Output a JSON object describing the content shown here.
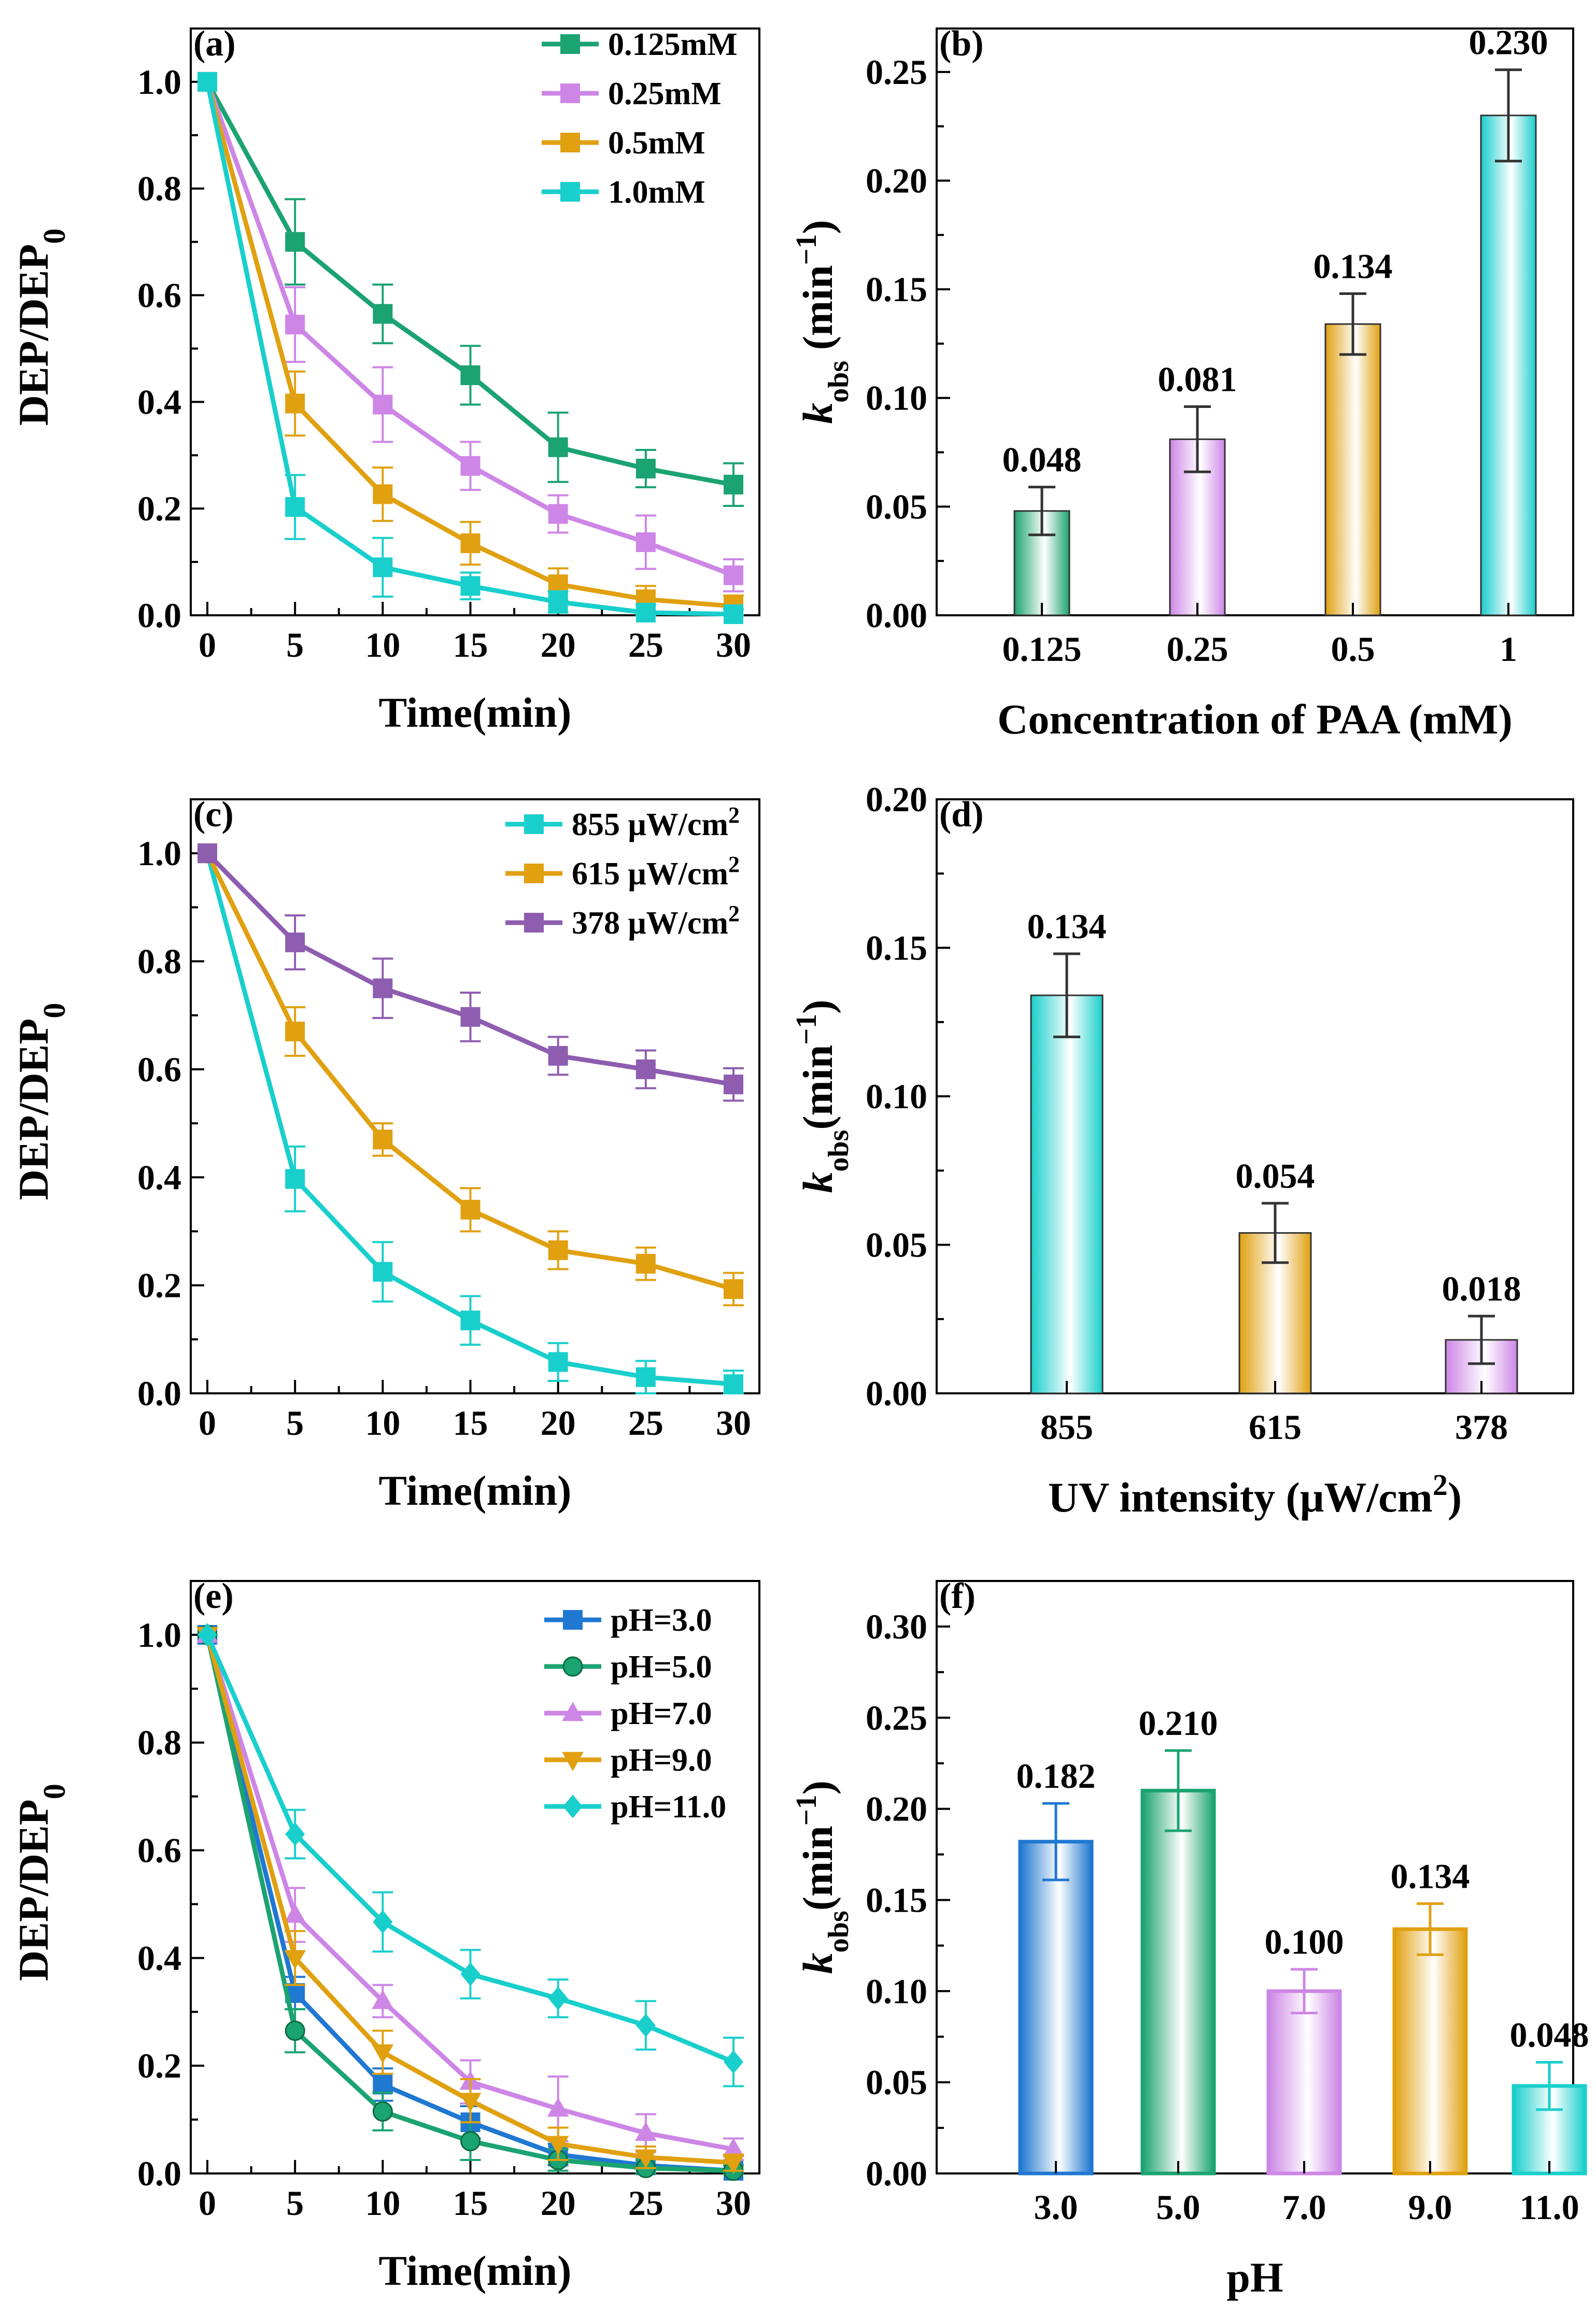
{
  "chart_data": [
    {
      "id": "a",
      "type": "line",
      "panel_label": "(a)",
      "xlabel": "Time(min)",
      "ylabel": "DEP/DEP",
      "ylabel_sub": "0",
      "x": [
        0,
        5,
        10,
        15,
        20,
        25,
        30
      ],
      "xticks": [
        "0",
        "5",
        "10",
        "15",
        "20",
        "25",
        "30"
      ],
      "ylim": [
        0,
        1.1
      ],
      "yticks": [
        "0.0",
        "0.2",
        "0.4",
        "0.6",
        "0.8",
        "1.0"
      ],
      "series": [
        {
          "name": "0.125mM",
          "color": "#1ba371",
          "marker": "square",
          "values": [
            1.0,
            0.7,
            0.565,
            0.45,
            0.315,
            0.275,
            0.245
          ],
          "errors": [
            0,
            0.08,
            0.055,
            0.055,
            0.065,
            0.035,
            0.04
          ]
        },
        {
          "name": "0.25mM",
          "color": "#cd86e6",
          "marker": "square",
          "values": [
            1.0,
            0.545,
            0.395,
            0.28,
            0.19,
            0.137,
            0.075
          ],
          "errors": [
            0,
            0.07,
            0.07,
            0.045,
            0.035,
            0.05,
            0.03
          ]
        },
        {
          "name": "0.5mM",
          "color": "#e0a010",
          "marker": "square",
          "values": [
            1.0,
            0.397,
            0.227,
            0.135,
            0.058,
            0.03,
            0.017
          ],
          "errors": [
            0,
            0.06,
            0.05,
            0.04,
            0.03,
            0.025,
            0.02
          ]
        },
        {
          "name": "1.0mM",
          "color": "#19cfcc",
          "marker": "square",
          "values": [
            1.0,
            0.203,
            0.09,
            0.055,
            0.025,
            0.005,
            0.002
          ],
          "errors": [
            0,
            0.06,
            0.055,
            0.025,
            0.02,
            0.015,
            0.01
          ]
        }
      ]
    },
    {
      "id": "b",
      "type": "bar",
      "panel_label": "(b)",
      "xlabel": "Concentration of PAA (mM)",
      "ylabel_italic": "k",
      "ylabel_sub": "obs",
      "ylabel_rest": "  (min",
      "ylabel_sup": "−1",
      "ylabel_end": ")",
      "categories": [
        "0.125",
        "0.25",
        "0.5",
        "1"
      ],
      "values": [
        0.048,
        0.081,
        0.134,
        0.23
      ],
      "value_labels": [
        "0.048",
        "0.081",
        "0.134",
        "0.230"
      ],
      "errors": [
        0.011,
        0.015,
        0.014,
        0.021
      ],
      "colors": [
        "#1ba371",
        "#cd86e6",
        "#e0a010",
        "#19cfcc"
      ],
      "ylim": [
        0,
        0.27
      ],
      "yticks": [
        "0.00",
        "0.05",
        "0.10",
        "0.15",
        "0.20",
        "0.25"
      ]
    },
    {
      "id": "c",
      "type": "line",
      "panel_label": "(c)",
      "xlabel": "Time(min)",
      "ylabel": "DEP/DEP",
      "ylabel_sub": "0",
      "x": [
        0,
        5,
        10,
        15,
        20,
        25,
        30
      ],
      "xticks": [
        "0",
        "5",
        "10",
        "15",
        "20",
        "25",
        "30"
      ],
      "ylim": [
        0,
        1.1
      ],
      "yticks": [
        "0.0",
        "0.2",
        "0.4",
        "0.6",
        "0.8",
        "1.0"
      ],
      "legend_sup": "2",
      "series": [
        {
          "name": "855 μW/cm",
          "color": "#19cfcc",
          "marker": "square",
          "values": [
            1.0,
            0.397,
            0.225,
            0.135,
            0.058,
            0.03,
            0.017
          ],
          "errors": [
            0,
            0.06,
            0.055,
            0.045,
            0.035,
            0.03,
            0.025
          ]
        },
        {
          "name": "615 μW/cm",
          "color": "#e0a010",
          "marker": "square",
          "values": [
            1.0,
            0.67,
            0.47,
            0.34,
            0.265,
            0.24,
            0.193
          ],
          "errors": [
            0,
            0.045,
            0.03,
            0.04,
            0.035,
            0.03,
            0.03
          ]
        },
        {
          "name": "378 μW/cm",
          "color": "#8e5db0",
          "marker": "square",
          "values": [
            1.0,
            0.835,
            0.75,
            0.697,
            0.625,
            0.6,
            0.572
          ],
          "errors": [
            0,
            0.05,
            0.055,
            0.045,
            0.035,
            0.035,
            0.03
          ]
        }
      ]
    },
    {
      "id": "d",
      "type": "bar",
      "panel_label": "(d)",
      "xlabel": "UV intensity (μW/cm",
      "xlabel_sup": "2",
      "xlabel_end": ")",
      "ylabel_italic": "k",
      "ylabel_sub": "obs",
      "ylabel_rest": "(min",
      "ylabel_sup": "−1",
      "ylabel_end": ")",
      "categories": [
        "855",
        "615",
        "378"
      ],
      "values": [
        0.134,
        0.054,
        0.018
      ],
      "value_labels": [
        "0.134",
        "0.054",
        "0.018"
      ],
      "errors": [
        0.014,
        0.01,
        0.008
      ],
      "colors": [
        "#19cfcc",
        "#e0a010",
        "#cd86e6"
      ],
      "ylim": [
        0,
        0.2
      ],
      "yticks": [
        "0.00",
        "0.05",
        "0.10",
        "0.15",
        "0.20"
      ]
    },
    {
      "id": "e",
      "type": "line",
      "panel_label": "(e)",
      "xlabel": "Time(min)",
      "ylabel": "DEP/DEP",
      "ylabel_sub": "0",
      "x": [
        0,
        5,
        10,
        15,
        20,
        25,
        30
      ],
      "xticks": [
        "0",
        "5",
        "10",
        "15",
        "20",
        "25",
        "30"
      ],
      "ylim": [
        0,
        1.1
      ],
      "yticks": [
        "0.0",
        "0.2",
        "0.4",
        "0.6",
        "0.8",
        "1.0"
      ],
      "series": [
        {
          "name": "pH=3.0",
          "color": "#1f78d1",
          "marker": "square",
          "values": [
            1.0,
            0.335,
            0.165,
            0.095,
            0.035,
            0.015,
            0.005
          ],
          "errors": [
            0,
            0.03,
            0.03,
            0.03,
            0.02,
            0.015,
            0.01
          ]
        },
        {
          "name": "pH=5.0",
          "color": "#1ba371",
          "marker": "circle",
          "values": [
            1.0,
            0.265,
            0.115,
            0.06,
            0.025,
            0.01,
            0.005
          ],
          "errors": [
            0,
            0.04,
            0.035,
            0.035,
            0.02,
            0.015,
            0.01
          ]
        },
        {
          "name": "pH=7.0",
          "color": "#cd86e6",
          "marker": "triangle-up",
          "values": [
            1.0,
            0.48,
            0.32,
            0.17,
            0.12,
            0.075,
            0.045
          ],
          "errors": [
            0,
            0.05,
            0.03,
            0.04,
            0.06,
            0.035,
            0.02
          ]
        },
        {
          "name": "pH=9.0",
          "color": "#e0a010",
          "marker": "triangle-down",
          "values": [
            1.0,
            0.4,
            0.225,
            0.135,
            0.055,
            0.03,
            0.02
          ],
          "errors": [
            0,
            0.05,
            0.04,
            0.04,
            0.03,
            0.02,
            0.015
          ]
        },
        {
          "name": "pH=11.0",
          "color": "#19cfcc",
          "marker": "diamond",
          "values": [
            1.0,
            0.63,
            0.467,
            0.37,
            0.325,
            0.275,
            0.207
          ],
          "errors": [
            0,
            0.045,
            0.055,
            0.045,
            0.035,
            0.045,
            0.045
          ]
        }
      ]
    },
    {
      "id": "f",
      "type": "bar",
      "panel_label": "(f)",
      "xlabel": "pH",
      "ylabel_italic": "k",
      "ylabel_sub": "obs",
      "ylabel_rest": "(min",
      "ylabel_sup": "−1",
      "ylabel_end": ")",
      "categories": [
        "3.0",
        "5.0",
        "7.0",
        "9.0",
        "11.0"
      ],
      "values": [
        0.182,
        0.21,
        0.1,
        0.134,
        0.048
      ],
      "value_labels": [
        "0.182",
        "0.210",
        "0.100",
        "0.134",
        "0.048"
      ],
      "errors": [
        0.021,
        0.022,
        0.012,
        0.014,
        0.013
      ],
      "colors": [
        "#1f78d1",
        "#1ba371",
        "#cd86e6",
        "#e0a010",
        "#19cfcc"
      ],
      "ylim": [
        0,
        0.325
      ],
      "yticks": [
        "0.00",
        "0.05",
        "0.10",
        "0.15",
        "0.20",
        "0.25",
        "0.30"
      ]
    }
  ]
}
